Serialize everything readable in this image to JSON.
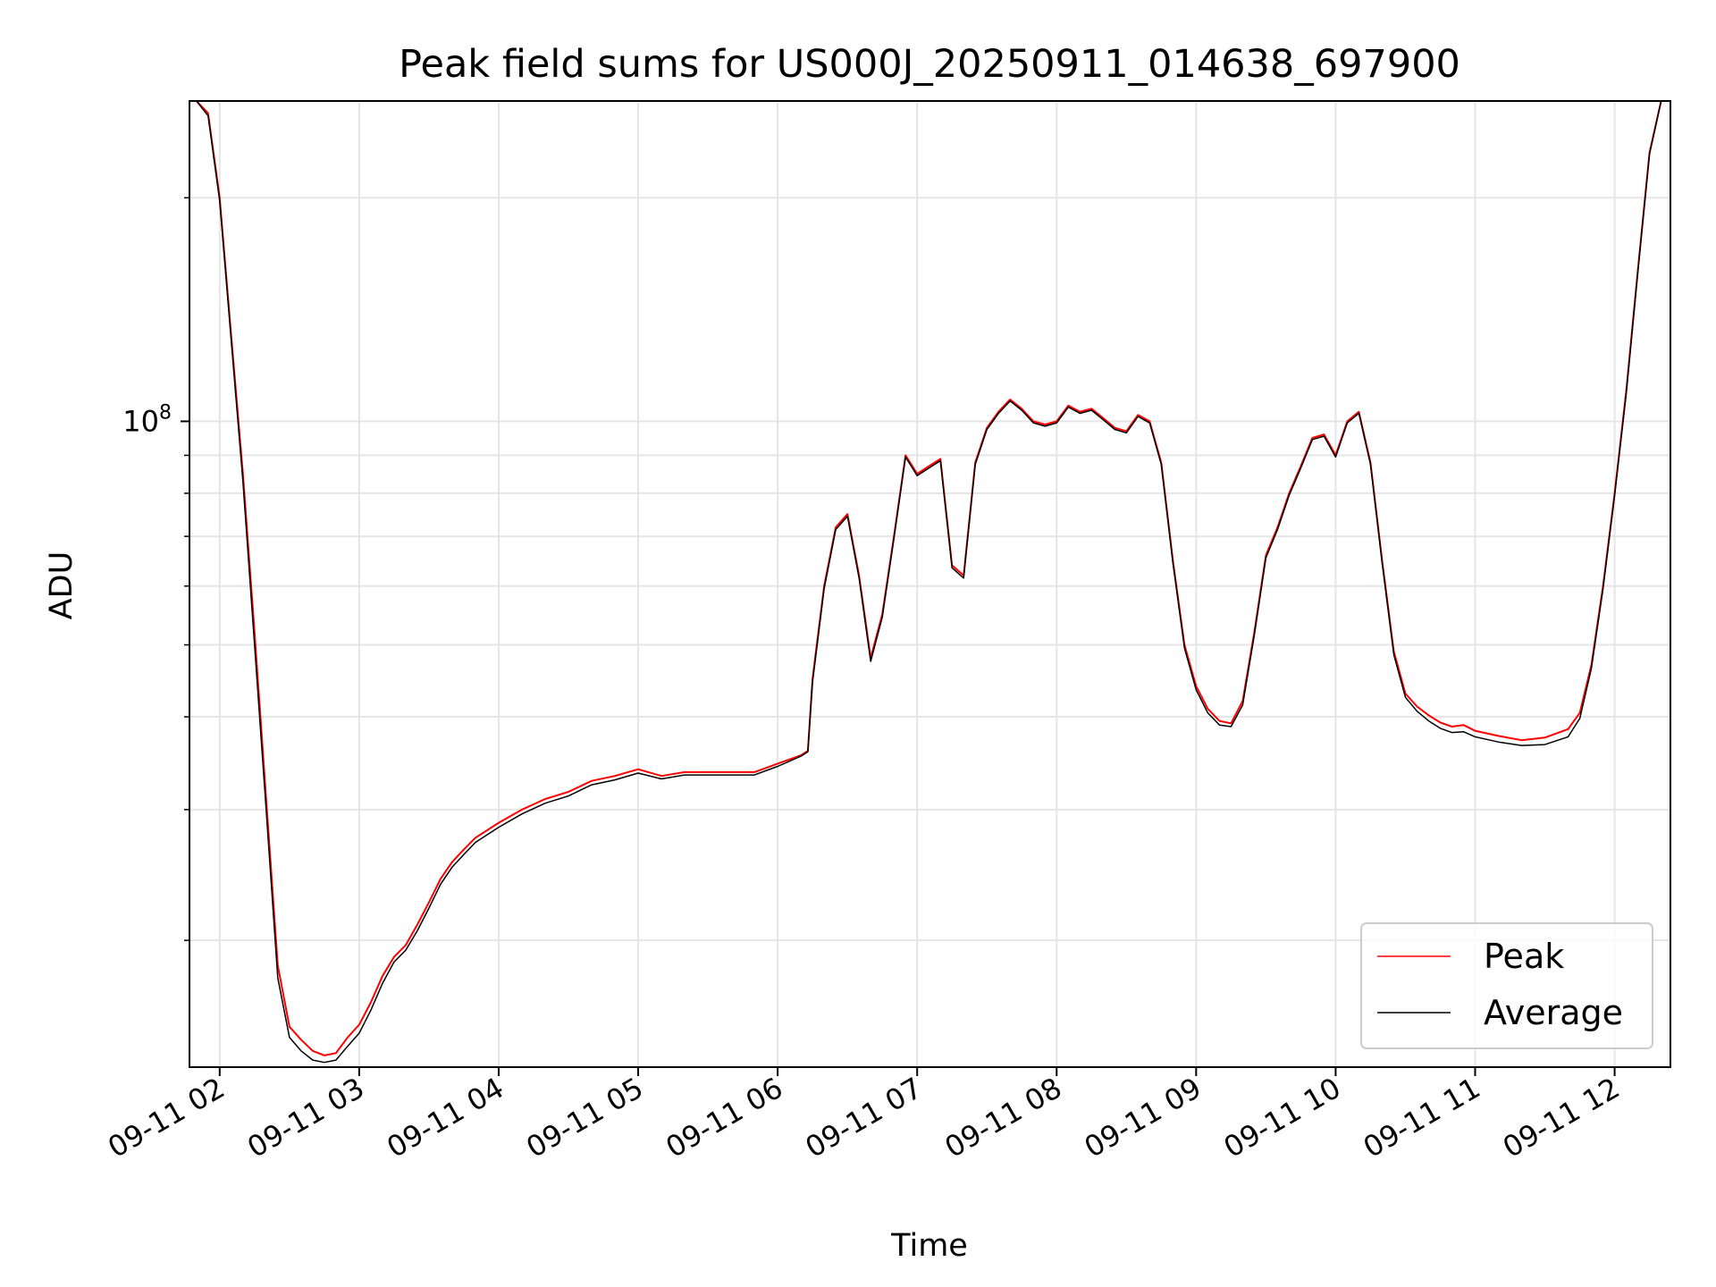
{
  "chart_data": {
    "type": "line",
    "title": "Peak field sums for US000J_20250911_014638_697900",
    "xlabel": "Time",
    "ylabel": "ADU",
    "yscale": "log",
    "grid": true,
    "legend_position": "lower right",
    "xlim": [
      "2025-09-11 01:47",
      "2025-09-11 12:24"
    ],
    "ylim": [
      13500000,
      270000000
    ],
    "x_ticks": [
      "09-11 02",
      "09-11 03",
      "09-11 04",
      "09-11 05",
      "09-11 06",
      "09-11 07",
      "09-11 08",
      "09-11 09",
      "09-11 10",
      "09-11 11",
      "09-11 12"
    ],
    "y_ticks": [
      {
        "value": 100000000,
        "base": "10",
        "exponent": "8"
      }
    ],
    "series": [
      {
        "name": "Peak",
        "color": "#ff0000",
        "x": [
          "01:50",
          "01:55",
          "02:00",
          "02:05",
          "02:10",
          "02:15",
          "02:20",
          "02:25",
          "02:30",
          "02:35",
          "02:40",
          "02:45",
          "02:50",
          "02:55",
          "03:00",
          "03:05",
          "03:10",
          "03:15",
          "03:20",
          "03:25",
          "03:30",
          "03:35",
          "03:40",
          "03:45",
          "03:50",
          "04:00",
          "04:10",
          "04:20",
          "04:30",
          "04:40",
          "04:50",
          "05:00",
          "05:10",
          "05:20",
          "05:30",
          "05:40",
          "05:50",
          "06:00",
          "06:10",
          "06:13",
          "06:15",
          "06:20",
          "06:25",
          "06:30",
          "06:35",
          "06:40",
          "06:45",
          "06:50",
          "06:55",
          "07:00",
          "07:05",
          "07:10",
          "07:15",
          "07:20",
          "07:25",
          "07:30",
          "07:35",
          "07:40",
          "07:45",
          "07:50",
          "07:55",
          "08:00",
          "08:05",
          "08:10",
          "08:15",
          "08:20",
          "08:25",
          "08:30",
          "08:35",
          "08:40",
          "08:45",
          "08:50",
          "08:55",
          "09:00",
          "09:05",
          "09:10",
          "09:15",
          "09:20",
          "09:25",
          "09:30",
          "09:35",
          "09:40",
          "09:45",
          "09:50",
          "09:55",
          "10:00",
          "10:05",
          "10:10",
          "10:15",
          "10:20",
          "10:25",
          "10:30",
          "10:35",
          "10:40",
          "10:45",
          "10:50",
          "10:55",
          "11:00",
          "11:10",
          "11:20",
          "11:30",
          "11:40",
          "11:45",
          "11:50",
          "11:55",
          "12:00",
          "12:05",
          "12:10",
          "12:15",
          "12:20"
        ],
        "values": [
          270000000,
          260000000,
          200000000,
          130000000,
          85000000,
          52000000,
          31000000,
          18500000,
          15300000,
          14700000,
          14200000,
          14000000,
          14100000,
          14800000,
          15400000,
          16500000,
          17900000,
          19000000,
          19700000,
          21000000,
          22500000,
          24200000,
          25500000,
          26500000,
          27500000,
          28800000,
          30000000,
          31000000,
          31700000,
          32800000,
          33300000,
          34000000,
          33300000,
          33700000,
          33700000,
          33700000,
          33700000,
          34600000,
          35500000,
          36000000,
          45000000,
          60000000,
          72000000,
          75000000,
          62000000,
          48000000,
          55000000,
          70000000,
          90000000,
          85000000,
          87000000,
          89000000,
          64000000,
          62000000,
          88000000,
          98000000,
          103000000,
          107000000,
          104000000,
          100000000,
          99000000,
          100000000,
          105000000,
          103000000,
          104000000,
          101000000,
          98000000,
          97000000,
          102000000,
          100000000,
          88000000,
          65000000,
          50000000,
          44000000,
          41000000,
          39500000,
          39200000,
          42000000,
          52000000,
          66000000,
          72000000,
          80000000,
          87000000,
          95000000,
          96000000,
          90000000,
          100000000,
          103000000,
          88000000,
          65000000,
          49000000,
          43000000,
          41300000,
          40200000,
          39300000,
          38800000,
          39000000,
          38300000,
          37700000,
          37200000,
          37500000,
          38500000,
          40500000,
          47000000,
          60000000,
          80000000,
          110000000,
          160000000,
          230000000,
          270000000
        ]
      },
      {
        "name": "Average",
        "color": "#000000",
        "x": [
          "01:50",
          "01:55",
          "02:00",
          "02:05",
          "02:10",
          "02:15",
          "02:20",
          "02:25",
          "02:30",
          "02:35",
          "02:40",
          "02:45",
          "02:50",
          "02:55",
          "03:00",
          "03:05",
          "03:10",
          "03:15",
          "03:20",
          "03:25",
          "03:30",
          "03:35",
          "03:40",
          "03:45",
          "03:50",
          "04:00",
          "04:10",
          "04:20",
          "04:30",
          "04:40",
          "04:50",
          "05:00",
          "05:10",
          "05:20",
          "05:30",
          "05:40",
          "05:50",
          "06:00",
          "06:10",
          "06:13",
          "06:15",
          "06:20",
          "06:25",
          "06:30",
          "06:35",
          "06:40",
          "06:45",
          "06:50",
          "06:55",
          "07:00",
          "07:05",
          "07:10",
          "07:15",
          "07:20",
          "07:25",
          "07:30",
          "07:35",
          "07:40",
          "07:45",
          "07:50",
          "07:55",
          "08:00",
          "08:05",
          "08:10",
          "08:15",
          "08:20",
          "08:25",
          "08:30",
          "08:35",
          "08:40",
          "08:45",
          "08:50",
          "08:55",
          "09:00",
          "09:05",
          "09:10",
          "09:15",
          "09:20",
          "09:25",
          "09:30",
          "09:35",
          "09:40",
          "09:45",
          "09:50",
          "09:55",
          "10:00",
          "10:05",
          "10:10",
          "10:15",
          "10:20",
          "10:25",
          "10:30",
          "10:35",
          "10:40",
          "10:45",
          "10:50",
          "10:55",
          "11:00",
          "11:10",
          "11:20",
          "11:30",
          "11:40",
          "11:45",
          "11:50",
          "11:55",
          "12:00",
          "12:05",
          "12:10",
          "12:15",
          "12:20"
        ],
        "values": [
          270000000,
          258000000,
          198000000,
          128000000,
          83000000,
          50000000,
          30000000,
          17800000,
          14800000,
          14200000,
          13800000,
          13700000,
          13800000,
          14400000,
          15000000,
          16100000,
          17500000,
          18700000,
          19400000,
          20600000,
          22100000,
          23800000,
          25100000,
          26100000,
          27100000,
          28400000,
          29600000,
          30600000,
          31300000,
          32400000,
          32900000,
          33600000,
          33000000,
          33400000,
          33400000,
          33400000,
          33400000,
          34300000,
          35400000,
          35900000,
          44500000,
          59500000,
          71500000,
          74500000,
          61500000,
          47500000,
          54500000,
          69500000,
          89500000,
          84500000,
          86500000,
          88500000,
          63500000,
          61500000,
          87500000,
          97500000,
          102500000,
          106500000,
          103500000,
          99500000,
          98500000,
          99500000,
          104500000,
          102500000,
          103500000,
          100500000,
          97500000,
          96500000,
          101500000,
          99500000,
          87500000,
          64500000,
          49500000,
          43500000,
          40500000,
          39000000,
          38800000,
          41500000,
          51500000,
          65500000,
          71500000,
          79500000,
          86500000,
          94500000,
          95500000,
          89500000,
          99500000,
          102500000,
          87500000,
          64500000,
          48500000,
          42500000,
          40700000,
          39500000,
          38600000,
          38100000,
          38200000,
          37600000,
          37000000,
          36600000,
          36700000,
          37600000,
          39800000,
          46500000,
          59500000,
          79500000,
          109000000,
          159000000,
          229000000,
          270000000
        ]
      }
    ]
  }
}
